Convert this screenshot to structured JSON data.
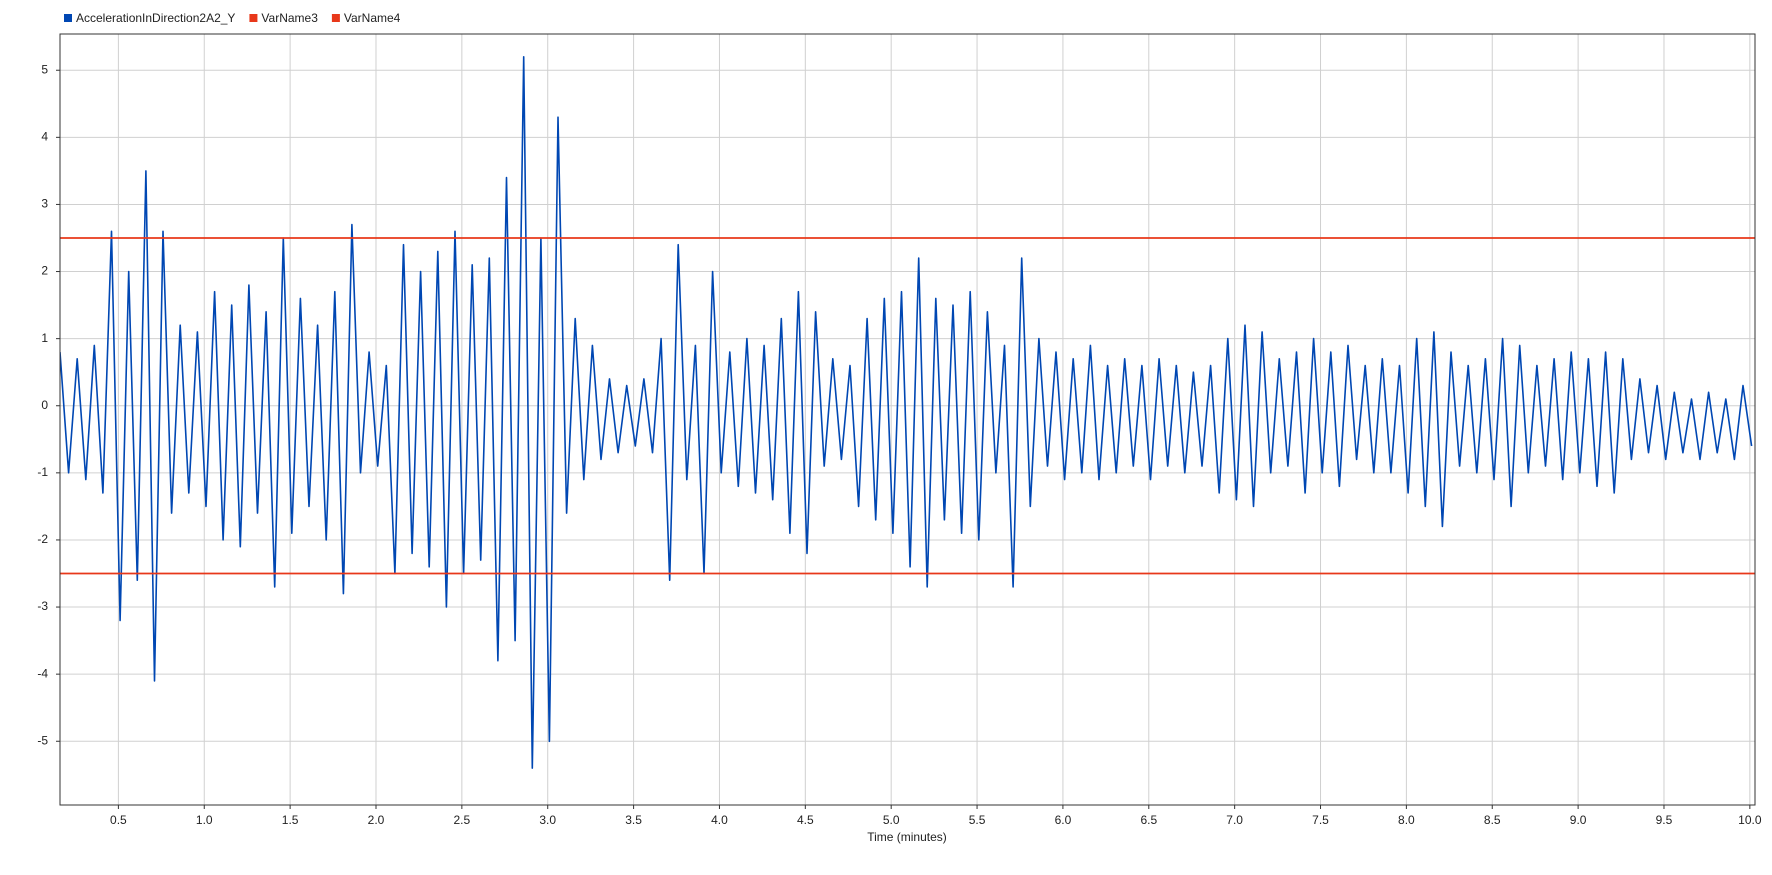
{
  "chart_data": {
    "type": "line",
    "xlabel": "Time (minutes)",
    "xlim": [
      0.16,
      10.03
    ],
    "ylim": [
      -5.95,
      5.54
    ],
    "xticks": [
      0.5,
      {
        "value": 1,
        "label": "1.0"
      },
      1.5,
      {
        "value": 2,
        "label": "2.0"
      },
      2.5,
      {
        "value": 3,
        "label": "3.0"
      },
      3.5,
      {
        "value": 4,
        "label": "4.0"
      },
      4.5,
      {
        "value": 5,
        "label": "5.0"
      },
      5.5,
      {
        "value": 6,
        "label": "6.0"
      },
      6.5,
      {
        "value": 7,
        "label": "7.0"
      },
      7.5,
      {
        "value": 8,
        "label": "8.0"
      },
      8.5,
      {
        "value": 9,
        "label": "9.0"
      },
      9.5,
      {
        "value": 10,
        "label": "10.0"
      }
    ],
    "yticks": [
      -5,
      -4,
      -3,
      -2,
      -1,
      0,
      1,
      2,
      3,
      4,
      5
    ],
    "grid": true,
    "legend": "top-left",
    "series": [
      {
        "name": "AccelerationInDirection2A2_Y",
        "color": "#0047b3",
        "x": [
          0.16,
          0.21,
          0.26,
          0.31,
          0.36,
          0.41,
          0.46,
          0.51,
          0.56,
          0.61,
          0.66,
          0.71,
          0.76,
          0.81,
          0.86,
          0.91,
          0.96,
          1.01,
          1.06,
          1.11,
          1.16,
          1.21,
          1.26,
          1.31,
          1.36,
          1.41,
          1.46,
          1.51,
          1.56,
          1.61,
          1.66,
          1.71,
          1.76,
          1.81,
          1.86,
          1.91,
          1.96,
          2.01,
          2.06,
          2.11,
          2.16,
          2.21,
          2.26,
          2.31,
          2.36,
          2.41,
          2.46,
          2.51,
          2.56,
          2.61,
          2.66,
          2.71,
          2.76,
          2.81,
          2.86,
          2.91,
          2.96,
          3.01,
          3.06,
          3.11,
          3.16,
          3.21,
          3.26,
          3.31,
          3.36,
          3.41,
          3.46,
          3.51,
          3.56,
          3.61,
          3.66,
          3.71,
          3.76,
          3.81,
          3.86,
          3.91,
          3.96,
          4.01,
          4.06,
          4.11,
          4.16,
          4.21,
          4.26,
          4.31,
          4.36,
          4.41,
          4.46,
          4.51,
          4.56,
          4.61,
          4.66,
          4.71,
          4.76,
          4.81,
          4.86,
          4.91,
          4.96,
          5.01,
          5.06,
          5.11,
          5.16,
          5.21,
          5.26,
          5.31,
          5.36,
          5.41,
          5.46,
          5.51,
          5.56,
          5.61,
          5.66,
          5.71,
          5.76,
          5.81,
          5.86,
          5.91,
          5.96,
          6.01,
          6.06,
          6.11,
          6.16,
          6.21,
          6.26,
          6.31,
          6.36,
          6.41,
          6.46,
          6.51,
          6.56,
          6.61,
          6.66,
          6.71,
          6.76,
          6.81,
          6.86,
          6.91,
          6.96,
          7.01,
          7.06,
          7.11,
          7.16,
          7.21,
          7.26,
          7.31,
          7.36,
          7.41,
          7.46,
          7.51,
          7.56,
          7.61,
          7.66,
          7.71,
          7.76,
          7.81,
          7.86,
          7.91,
          7.96,
          8.01,
          8.06,
          8.11,
          8.16,
          8.21,
          8.26,
          8.31,
          8.36,
          8.41,
          8.46,
          8.51,
          8.56,
          8.61,
          8.66,
          8.71,
          8.76,
          8.81,
          8.86,
          8.91,
          8.96,
          9.01,
          9.06,
          9.11,
          9.16,
          9.21,
          9.26,
          9.31,
          9.36,
          9.41,
          9.46,
          9.51,
          9.56,
          9.61,
          9.66,
          9.71,
          9.76,
          9.81,
          9.86,
          9.91,
          9.96,
          10.01
        ],
        "values": [
          0.8,
          -1.0,
          0.7,
          -1.1,
          0.9,
          -1.3,
          2.6,
          -3.2,
          2.0,
          -2.6,
          3.5,
          -4.1,
          2.6,
          -1.6,
          1.2,
          -1.3,
          1.1,
          -1.5,
          1.7,
          -2.0,
          1.5,
          -2.1,
          1.8,
          -1.6,
          1.4,
          -2.7,
          2.5,
          -1.9,
          1.6,
          -1.5,
          1.2,
          -2.0,
          1.7,
          -2.8,
          2.7,
          -1.0,
          0.8,
          -0.9,
          0.6,
          -2.5,
          2.4,
          -2.2,
          2.0,
          -2.4,
          2.3,
          -3.0,
          2.6,
          -2.5,
          2.1,
          -2.3,
          2.2,
          -3.8,
          3.4,
          -3.5,
          5.2,
          -5.4,
          2.5,
          -5.0,
          4.3,
          -1.6,
          1.3,
          -1.1,
          0.9,
          -0.8,
          0.4,
          -0.7,
          0.3,
          -0.6,
          0.4,
          -0.7,
          1.0,
          -2.6,
          2.4,
          -1.1,
          0.9,
          -2.5,
          2.0,
          -1.0,
          0.8,
          -1.2,
          1.0,
          -1.3,
          0.9,
          -1.4,
          1.3,
          -1.9,
          1.7,
          -2.2,
          1.4,
          -0.9,
          0.7,
          -0.8,
          0.6,
          -1.5,
          1.3,
          -1.7,
          1.6,
          -1.9,
          1.7,
          -2.4,
          2.2,
          -2.7,
          1.6,
          -1.7,
          1.5,
          -1.9,
          1.7,
          -2.0,
          1.4,
          -1.0,
          0.9,
          -2.7,
          2.2,
          -1.5,
          1.0,
          -0.9,
          0.8,
          -1.1,
          0.7,
          -1.0,
          0.9,
          -1.1,
          0.6,
          -1.0,
          0.7,
          -0.9,
          0.6,
          -1.1,
          0.7,
          -0.9,
          0.6,
          -1.0,
          0.5,
          -0.9,
          0.6,
          -1.3,
          1.0,
          -1.4,
          1.2,
          -1.5,
          1.1,
          -1.0,
          0.7,
          -0.9,
          0.8,
          -1.3,
          1.0,
          -1.0,
          0.8,
          -1.2,
          0.9,
          -0.8,
          0.6,
          -1.0,
          0.7,
          -1.0,
          0.6,
          -1.3,
          1.0,
          -1.5,
          1.1,
          -1.8,
          0.8,
          -0.9,
          0.6,
          -1.0,
          0.7,
          -1.1,
          1.0,
          -1.5,
          0.9,
          -1.0,
          0.6,
          -0.9,
          0.7,
          -1.1,
          0.8,
          -1.0,
          0.7,
          -1.2,
          0.8,
          -1.3,
          0.7,
          -0.8,
          0.4,
          -0.7,
          0.3,
          -0.8,
          0.2,
          -0.7,
          0.1,
          -0.8,
          0.2,
          -0.7,
          0.1,
          -0.8,
          0.3,
          -0.6
        ]
      },
      {
        "name": "VarName3",
        "color": "#e8381a",
        "x": [
          0.16,
          10.03
        ],
        "values": [
          2.5,
          2.5
        ]
      },
      {
        "name": "VarName4",
        "color": "#e8381a",
        "x": [
          0.16,
          10.03
        ],
        "values": [
          -2.5,
          -2.5
        ]
      }
    ]
  }
}
